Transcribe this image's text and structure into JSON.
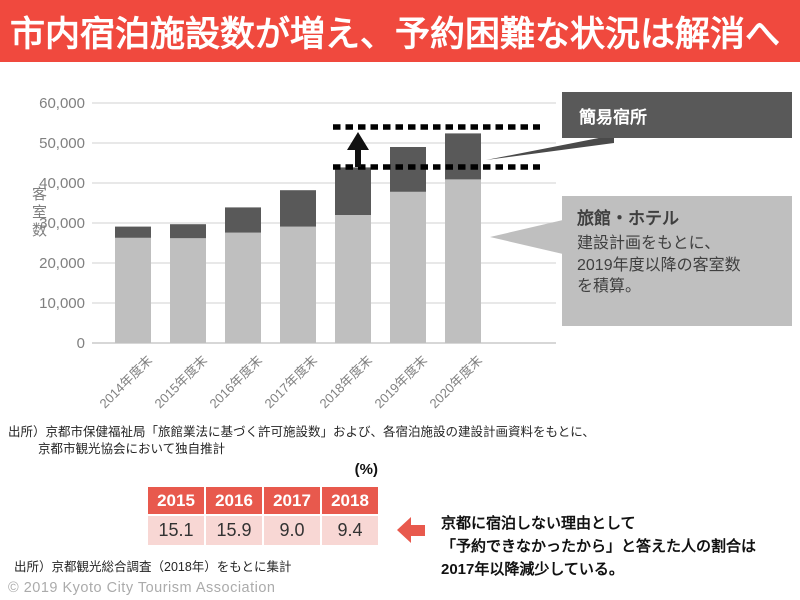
{
  "header": {
    "title": "市内宿泊施設数が増え、予約困難な状況は解消へ",
    "bg_color": "#F0493E"
  },
  "chart_data": {
    "type": "bar",
    "stacked": true,
    "ylabel": "客室数",
    "ylim": [
      0,
      60000
    ],
    "ytick_labels": [
      "0",
      "10,000",
      "20,000",
      "30,000",
      "40,000",
      "50,000",
      "60,000"
    ],
    "grid": true,
    "categories": [
      "2014年度末",
      "2015年度末",
      "2016年度末",
      "2017年度末",
      "2018年度末",
      "2019年度末",
      "2020年度末"
    ],
    "series": [
      {
        "name": "旅館・ホテル",
        "color": "#BFBFBF",
        "values": [
          26300,
          26200,
          27600,
          29100,
          32000,
          37800,
          40900
        ]
      },
      {
        "name": "簡易宿所",
        "color": "#595959",
        "values": [
          2800,
          3500,
          6300,
          9100,
          11900,
          11200,
          11500
        ]
      }
    ],
    "annotations": {
      "dashed_line_values": [
        44000,
        54000
      ],
      "dashed_line_color": "#000000",
      "arrow_meaning": "2018年度末から2020年度末にかけての客室数の増加"
    }
  },
  "callouts": {
    "simple_lodging": {
      "label": "簡易宿所",
      "bg": "#595959",
      "text_color": "#FFFFFF"
    },
    "ryokan_hotel": {
      "title": "旅館・ホテル",
      "body_lines": [
        "建設計画をもとに、",
        "2019年度以降の客室数",
        "を積算。"
      ],
      "bg": "#BFBFBF",
      "text_color": "#3F3F3F"
    }
  },
  "sources": {
    "chart_line1": "出所）京都市保健福祉局「旅館業法に基づく許可施設数」および、各宿泊施設の建設計画資料をもとに、",
    "chart_line2": "京都市観光協会において独自推計",
    "table": "出所）京都観光総合調査（2018年）をもとに集計"
  },
  "table": {
    "unit_label": "(%)",
    "headers": [
      "2015",
      "2016",
      "2017",
      "2018"
    ],
    "values": [
      "15.1",
      "15.9",
      "9.0",
      "9.4"
    ],
    "header_bg": "#E8594D",
    "row_bg": "#F8D7D4"
  },
  "note": {
    "lines": [
      "京都に宿泊しない理由として",
      "「予約できなかったから」と答えた人の割合は",
      "2017年以降減少している。"
    ]
  },
  "footer": {
    "copyright": "© 2019 Kyoto City Tourism Association"
  }
}
